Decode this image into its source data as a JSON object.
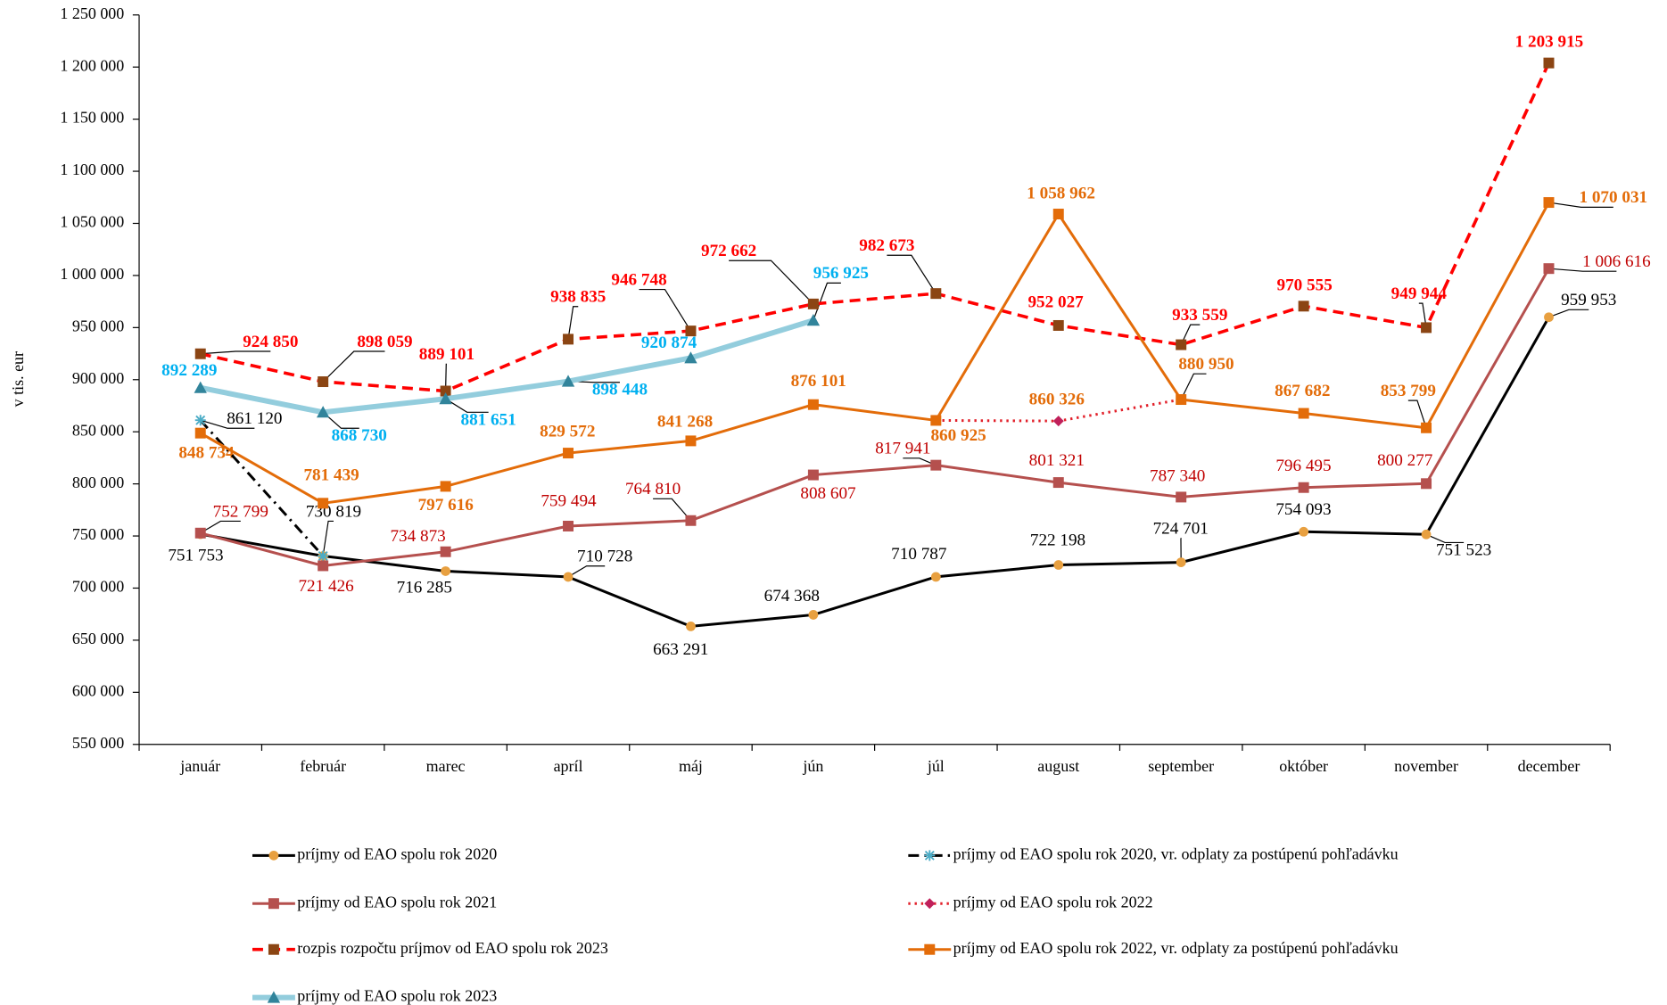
{
  "chart_data": {
    "type": "line",
    "y_label": "v tis. eur",
    "categories": [
      "január",
      "február",
      "marec",
      "apríl",
      "máj",
      "jún",
      "júl",
      "august",
      "september",
      "október",
      "november",
      "december"
    ],
    "ylim": [
      550000,
      1250000
    ],
    "yticks": [
      {
        "value": 550000,
        "label": "550 000"
      },
      {
        "value": 600000,
        "label": "600 000"
      },
      {
        "value": 650000,
        "label": "650 000"
      },
      {
        "value": 700000,
        "label": "700 000"
      },
      {
        "value": 750000,
        "label": "750 000"
      },
      {
        "value": 800000,
        "label": "800 000"
      },
      {
        "value": 850000,
        "label": "850 000"
      },
      {
        "value": 900000,
        "label": "900 000"
      },
      {
        "value": 950000,
        "label": "950 000"
      },
      {
        "value": 1000000,
        "label": "1 000 000"
      },
      {
        "value": 1050000,
        "label": "1 050 000"
      },
      {
        "value": 1100000,
        "label": "1 100 000"
      },
      {
        "value": 1150000,
        "label": "1 150 000"
      },
      {
        "value": 1200000,
        "label": "1 200 000"
      },
      {
        "value": 1250000,
        "label": "1 250 000"
      }
    ],
    "grid": false,
    "legend": "bottom",
    "series": [
      {
        "name": "príjmy od EAO spolu rok 2020",
        "color": "#000000",
        "marker_color": "#e8a040",
        "marker": "circle",
        "line_style": "solid",
        "values": [
          751753,
          730819,
          716285,
          710728,
          663291,
          674368,
          710787,
          722198,
          724701,
          754093,
          751523,
          959953
        ],
        "value_labels": [
          "751 753",
          "730 819",
          "716 285",
          "710 728",
          "663 291",
          "674 368",
          "710 787",
          "722 198",
          "724 701",
          "754 093",
          "751 523",
          "959 953"
        ]
      },
      {
        "name": "príjmy od EAO spolu rok 2020, vr. odplaty za postúpenú pohľadávku",
        "color": "#000000",
        "marker_color": "#4bacc6",
        "marker": "asterisk",
        "line_style": "dashdot",
        "values": [
          861120,
          730819,
          null,
          null,
          null,
          null,
          null,
          null,
          null,
          null,
          null,
          null
        ],
        "value_labels": [
          "861 120",
          null,
          null,
          null,
          null,
          null,
          null,
          null,
          null,
          null,
          null,
          null
        ]
      },
      {
        "name": "príjmy od EAO spolu rok 2021",
        "color": "#b5504e",
        "marker_color": "#b5504e",
        "marker": "square",
        "line_style": "solid",
        "values": [
          752799,
          721426,
          734873,
          759494,
          764810,
          808607,
          817941,
          801321,
          787340,
          796495,
          800277,
          1006616
        ],
        "value_labels": [
          "752 799",
          "721 426",
          "734 873",
          "759 494",
          "764 810",
          "808 607",
          "817 941",
          "801 321",
          "787 340",
          "796 495",
          "800 277",
          "1 006 616"
        ]
      },
      {
        "name": "príjmy od EAO spolu rok 2022",
        "color": "#e2202a",
        "marker_color": "#c0205a",
        "marker": "diamond",
        "line_style": "dotted",
        "values": [
          null,
          null,
          null,
          null,
          null,
          null,
          860925,
          860326,
          880950,
          null,
          null,
          null
        ],
        "value_labels": [
          null,
          null,
          null,
          null,
          null,
          null,
          null,
          "860 326",
          null,
          null,
          null,
          null
        ]
      },
      {
        "name": "rozpis rozpočtu príjmov od EAO spolu rok 2023",
        "color": "#ff0000",
        "marker_color": "#8b4513",
        "marker": "square",
        "line_style": "dashed",
        "values": [
          924850,
          898059,
          889101,
          938835,
          946748,
          972662,
          982673,
          952027,
          933559,
          970555,
          949944,
          1203915
        ],
        "value_labels": [
          "924 850",
          "898 059",
          "889 101",
          "938 835",
          "946 748",
          "972 662",
          "982 673",
          "952 027",
          "933 559",
          "970 555",
          "949 944",
          "1 203 915"
        ]
      },
      {
        "name": "príjmy od EAO spolu rok 2022, vr. odplaty za postúpenú pohľadávku",
        "color": "#e36c09",
        "marker_color": "#e36c09",
        "marker": "square",
        "line_style": "solid",
        "values": [
          848734,
          781439,
          797616,
          829572,
          841268,
          876101,
          860925,
          1058962,
          880950,
          867682,
          853799,
          1070031
        ],
        "value_labels": [
          "848 734",
          "781 439",
          "797 616",
          "829 572",
          "841 268",
          "876 101",
          "860 925",
          "1 058 962",
          "880 950",
          "867 682",
          "853 799",
          "1 070 031"
        ]
      },
      {
        "name": "príjmy od EAO spolu rok 2023",
        "color": "#93cddd",
        "marker_color": "#31849b",
        "marker": "triangle",
        "line_style": "solid",
        "values": [
          892289,
          868730,
          881651,
          898448,
          920874,
          956925,
          null,
          null,
          null,
          null,
          null,
          null
        ],
        "value_labels": [
          "892 289",
          "868 730",
          "881 651",
          "898 448",
          "920 874",
          "956 925",
          null,
          null,
          null,
          null,
          null,
          null
        ]
      }
    ]
  }
}
